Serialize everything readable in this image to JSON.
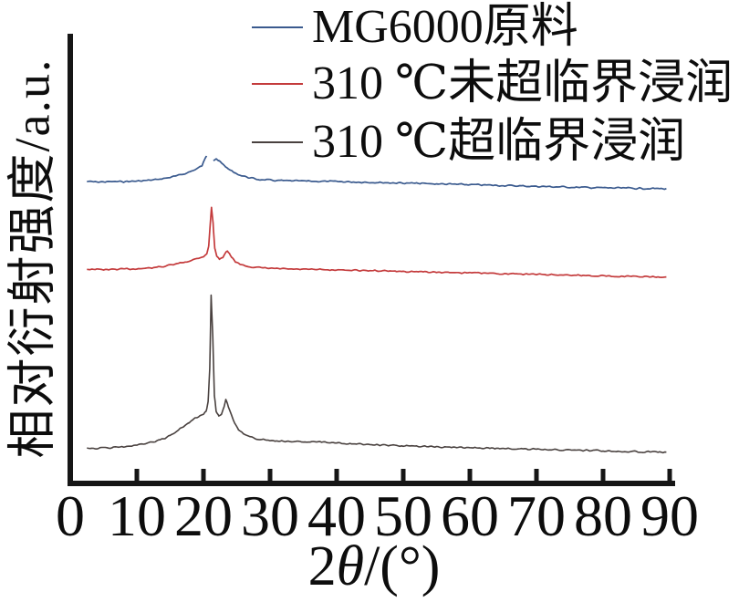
{
  "axes": {
    "x": {
      "label_parts": [
        "2",
        "θ",
        "/(°)"
      ]
    },
    "y": {
      "label": "相对衍射强度/a.u."
    }
  },
  "chart_data": {
    "type": "line",
    "title": "",
    "xlabel": "2θ/(°)",
    "ylabel": "相对衍射强度/a.u.",
    "xlim": [
      0,
      95
    ],
    "x_ticks": [
      0,
      10,
      20,
      30,
      40,
      50,
      60,
      70,
      80,
      90
    ],
    "x_range_shown": [
      2.5,
      89.5
    ],
    "grid": false,
    "legend_position": "top",
    "intensity_units": "a.u., each curve normalized to its own maximum = 100, curves vertically offset",
    "series": [
      {
        "name": "MG6000原料",
        "color": "#3a5a8e",
        "offset_rank": "top",
        "main_peak_2theta": 20.5,
        "gap_2theta": [
          20.55,
          21.35
        ],
        "points": [
          [
            2.5,
            22
          ],
          [
            4,
            21
          ],
          [
            6,
            21.5
          ],
          [
            8,
            22
          ],
          [
            10,
            23.5
          ],
          [
            12,
            26
          ],
          [
            14,
            31
          ],
          [
            16,
            39
          ],
          [
            17,
            45
          ],
          [
            18,
            52
          ],
          [
            19,
            61
          ],
          [
            19.8,
            70
          ],
          [
            20.4,
            100
          ],
          [
            21.5,
            88
          ],
          [
            21.9,
            93
          ],
          [
            22.3,
            85
          ],
          [
            22.8,
            76
          ],
          [
            23.3,
            68
          ],
          [
            24,
            57
          ],
          [
            24.7,
            48
          ],
          [
            25.5,
            42
          ],
          [
            26.5,
            36
          ],
          [
            27.5,
            31
          ],
          [
            28.5,
            28
          ],
          [
            30,
            26
          ],
          [
            32,
            24.5
          ],
          [
            35,
            23.5
          ],
          [
            40,
            22
          ],
          [
            45,
            20
          ],
          [
            50,
            17.5
          ],
          [
            55,
            15
          ],
          [
            60,
            12.5
          ],
          [
            65,
            10
          ],
          [
            70,
            7.5
          ],
          [
            75,
            5
          ],
          [
            80,
            3
          ],
          [
            85,
            1.5
          ],
          [
            90,
            0
          ]
        ]
      },
      {
        "name": "310 ℃未超临界浸润",
        "color": "#c43b3c",
        "offset_rank": "middle",
        "main_peak_2theta": 21.2,
        "points": [
          [
            2.5,
            17
          ],
          [
            4,
            16.5
          ],
          [
            6,
            16.5
          ],
          [
            8,
            17
          ],
          [
            10,
            17.5
          ],
          [
            12,
            18.5
          ],
          [
            14,
            20.5
          ],
          [
            16,
            24
          ],
          [
            17.5,
            27
          ],
          [
            19,
            31
          ],
          [
            20,
            34
          ],
          [
            20.5,
            38
          ],
          [
            20.8,
            48
          ],
          [
            21,
            75
          ],
          [
            21.2,
            100
          ],
          [
            21.45,
            78
          ],
          [
            21.7,
            45
          ],
          [
            22,
            34
          ],
          [
            22.4,
            31
          ],
          [
            22.9,
            33
          ],
          [
            23.4,
            40
          ],
          [
            23.6,
            41
          ],
          [
            23.9,
            37
          ],
          [
            24.3,
            32
          ],
          [
            24.8,
            27
          ],
          [
            25.5,
            23.5
          ],
          [
            26.5,
            21
          ],
          [
            28,
            19
          ],
          [
            30,
            18
          ],
          [
            33,
            17
          ],
          [
            36,
            16.5
          ],
          [
            40,
            16
          ],
          [
            45,
            15
          ],
          [
            50,
            14
          ],
          [
            55,
            13
          ],
          [
            60,
            12
          ],
          [
            65,
            11
          ],
          [
            70,
            10
          ],
          [
            75,
            9
          ],
          [
            80,
            8
          ],
          [
            85,
            7
          ],
          [
            90,
            6
          ]
        ]
      },
      {
        "name": "310 ℃超临界浸润",
        "color": "#49413f",
        "offset_rank": "bottom",
        "main_peak_2theta": 21.15,
        "points": [
          [
            2.5,
            5.5
          ],
          [
            4,
            5
          ],
          [
            6,
            5.5
          ],
          [
            8,
            6
          ],
          [
            10,
            7
          ],
          [
            12,
            8.5
          ],
          [
            14,
            11
          ],
          [
            15.5,
            14
          ],
          [
            17,
            18.5
          ],
          [
            17.8,
            21
          ],
          [
            18.4,
            23
          ],
          [
            19,
            24
          ],
          [
            19.5,
            25.5
          ],
          [
            20,
            26.5
          ],
          [
            20.4,
            28
          ],
          [
            20.7,
            34
          ],
          [
            20.95,
            55
          ],
          [
            21.15,
            100
          ],
          [
            21.4,
            75
          ],
          [
            21.65,
            38
          ],
          [
            21.9,
            28
          ],
          [
            22.3,
            25
          ],
          [
            22.7,
            26.5
          ],
          [
            23.1,
            31
          ],
          [
            23.35,
            35
          ],
          [
            23.6,
            33
          ],
          [
            23.9,
            29
          ],
          [
            24.2,
            26
          ],
          [
            24.7,
            21
          ],
          [
            25.2,
            17
          ],
          [
            26,
            14
          ],
          [
            27,
            12
          ],
          [
            28,
            11
          ],
          [
            30,
            10
          ],
          [
            32,
            9.5
          ],
          [
            35,
            9
          ],
          [
            38,
            9
          ],
          [
            40,
            8.5
          ],
          [
            42,
            8
          ],
          [
            45,
            7.5
          ],
          [
            50,
            6.5
          ],
          [
            55,
            6
          ],
          [
            60,
            5.5
          ],
          [
            65,
            5
          ],
          [
            70,
            4.5
          ],
          [
            75,
            4
          ],
          [
            80,
            3.5
          ],
          [
            85,
            3
          ],
          [
            90,
            2.5
          ]
        ]
      }
    ]
  }
}
